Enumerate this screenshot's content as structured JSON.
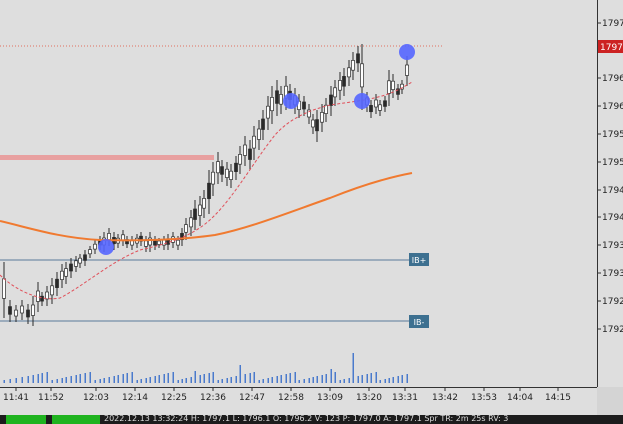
{
  "price_axis": {
    "labels": [
      "1797",
      "1796",
      "1796",
      "1795",
      "1795",
      "1794",
      "1794",
      "1793",
      "1793",
      "1792",
      "1792"
    ],
    "current_price_label": "1797",
    "current_price_color": "#cc2222"
  },
  "time_axis": {
    "labels": [
      "11:41",
      "11:52",
      "12:03",
      "12:14",
      "12:25",
      "12:36",
      "12:47",
      "12:58",
      "13:09",
      "13:20",
      "13:31",
      "13:42",
      "13:53",
      "14:04",
      "14:15"
    ]
  },
  "markers": {
    "ib_plus": "IB+",
    "ib_minus": "IB-"
  },
  "status_bar": {
    "text": "2022.12.13 13:32:24 H: 1797.1 L: 1796.1 O: 1796.2 V: 123 P: 1797.0 A: 1797.1 Spr TR: 2m 25s RV: 3"
  },
  "colors": {
    "bull_candle": "#2a2a2a",
    "bear_candle": "#2a2a2a",
    "slow_ma": "#f07a30",
    "fast_ma": "#e0505a",
    "swing_marker": "#5566ff",
    "ib_line": "#5a7a9a",
    "ib_label_bg": "#3d7090",
    "resistance_zone": "#e8a0a0",
    "volume": "#4a7acc"
  }
}
